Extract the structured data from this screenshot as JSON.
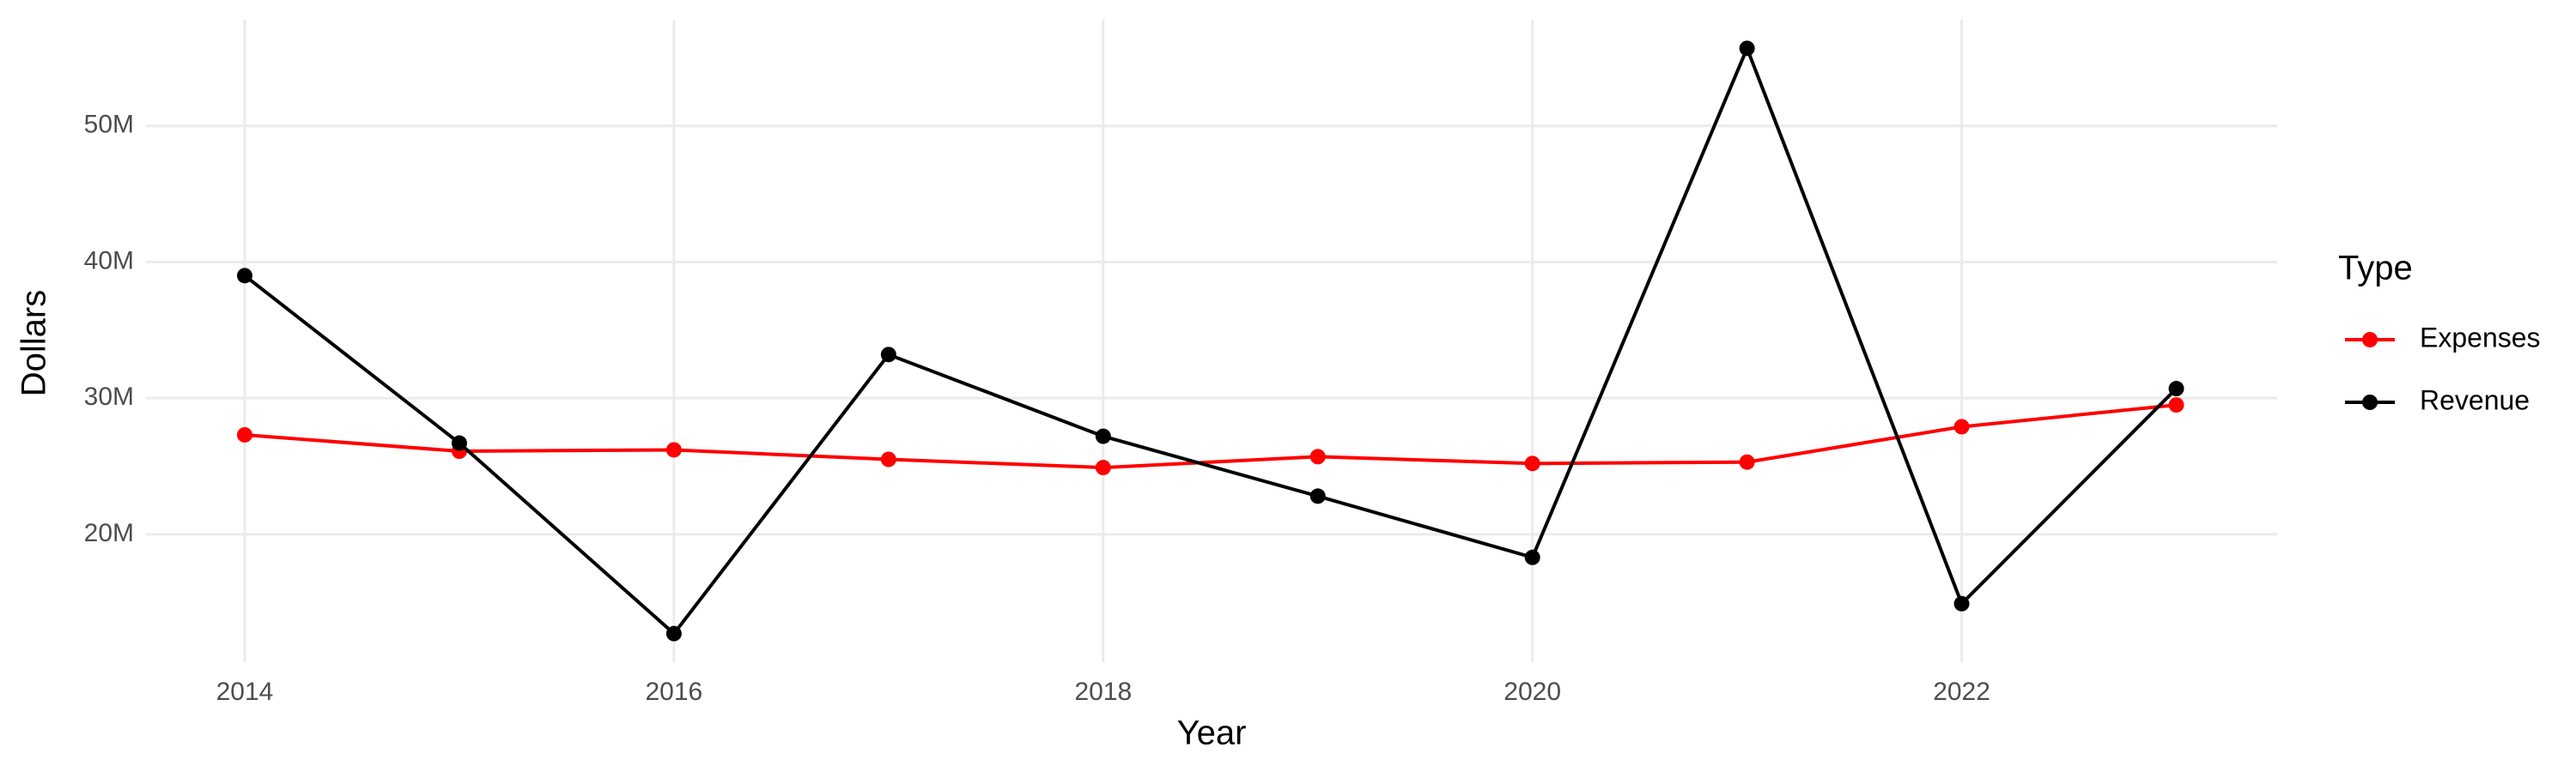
{
  "chart_data": {
    "type": "line",
    "x_label": "Year",
    "y_label": "Dollars",
    "legend_title": "Type",
    "legend": "right",
    "grid": true,
    "x": [
      2014,
      2015,
      2016,
      2017,
      2018,
      2019,
      2020,
      2021,
      2022,
      2023
    ],
    "series": [
      {
        "name": "Expenses",
        "color": "#ff0000",
        "values": [
          27300000,
          26100000,
          26200000,
          25500000,
          24900000,
          25700000,
          25200000,
          25300000,
          27900000,
          29500000
        ]
      },
      {
        "name": "Revenue",
        "color": "#000000",
        "values": [
          39000000,
          26700000,
          12700000,
          33200000,
          27200000,
          22800000,
          18300000,
          55700000,
          14900000,
          30700000
        ]
      }
    ],
    "xlim": [
      2013.54,
      2023.47
    ],
    "xticks": [
      2014,
      2016,
      2018,
      2020,
      2022
    ],
    "ylim": [
      10600000,
      57800000
    ],
    "yticks": [
      {
        "value": 20000000,
        "label": "20M"
      },
      {
        "value": 30000000,
        "label": "30M"
      },
      {
        "value": 40000000,
        "label": "40M"
      },
      {
        "value": 50000000,
        "label": "50M"
      }
    ]
  }
}
